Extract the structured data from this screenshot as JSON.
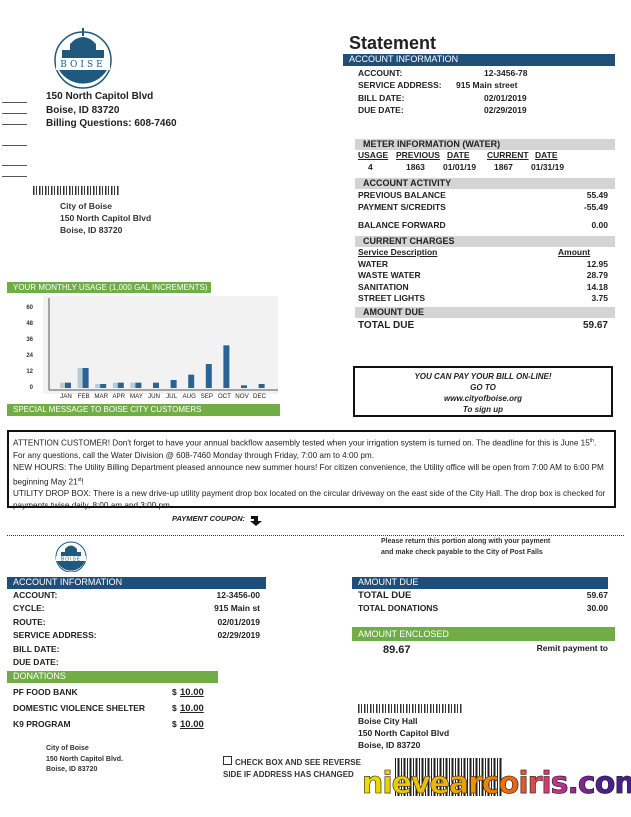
{
  "logo": {
    "text": "BOISE",
    "subtext": "CITY OF TREES"
  },
  "header": {
    "address1": "150 North Capitol Blvd",
    "address2": "Boise, ID 83720",
    "billing": "Billing Questions: 608-7460"
  },
  "mailing": {
    "name": "City of Boise",
    "address1": "150 North Capitol Blvd",
    "address2": "Boise, ID 83720"
  },
  "statement": {
    "title": "Statement",
    "account_header": "ACCOUNT INFORMATION",
    "rows": [
      {
        "label": "ACCOUNT:",
        "value": "12-3456-78"
      },
      {
        "label": "SERVICE ADDRESS:",
        "value": "915 Main street"
      },
      {
        "label": "BILL DATE:",
        "value": "02/01/2019"
      },
      {
        "label": "DUE DATE:",
        "value": "02/29/2019"
      }
    ],
    "meter": {
      "header": "METER INFORMATION (WATER)",
      "columns": [
        "USAGE",
        "PREVIOUS",
        "DATE",
        "CURRENT",
        "DATE"
      ],
      "values": [
        "4",
        "1863",
        "01/01/19",
        "1867",
        "01/31/19"
      ]
    },
    "activity": {
      "header": "ACCOUNT ACTIVITY",
      "rows": [
        {
          "label": "PREVIOUS BALANCE",
          "value": "55.49"
        },
        {
          "label": "PAYMENT S/CREDITS",
          "value": "-55.49"
        },
        {
          "label": "BALANCE FORWARD",
          "value": "0.00"
        }
      ]
    },
    "charges": {
      "header": "CURRENT CHARGES",
      "col_desc": "Service Description",
      "col_amount": "Amount",
      "rows": [
        {
          "label": "WATER",
          "value": "12.95"
        },
        {
          "label": "WASTE WATER",
          "value": "28.79"
        },
        {
          "label": "SANITATION",
          "value": "14.18"
        },
        {
          "label": "STREET LIGHTS",
          "value": "3.75"
        }
      ]
    },
    "amount_due": {
      "header": "AMOUNT DUE",
      "label": "TOTAL DUE",
      "value": "59.67"
    }
  },
  "online": {
    "line1": "YOU CAN PAY YOUR BILL ON-LINE!",
    "line2": "GO TO",
    "line3": "www.cityofboise.org",
    "line4": "To sign up"
  },
  "usage": {
    "header": "YOUR MONTHLY USAGE (1,000 GAL INCREMENTS)",
    "special": "SPECIAL MESSAGE TO BOISE CITY CUSTOMERS"
  },
  "chart_data": {
    "type": "bar",
    "title": "YOUR MONTHLY USAGE (1,000 GAL INCREMENTS)",
    "categories": [
      "JAN",
      "FEB",
      "MAR",
      "APR",
      "MAY",
      "JUN",
      "JUL",
      "AUG",
      "SEP",
      "OCT",
      "NOV",
      "DEC"
    ],
    "series": [
      {
        "values": [
          4,
          15,
          3,
          4,
          4,
          null,
          null,
          null,
          null,
          null,
          null,
          null
        ],
        "color": "#b8c9d8"
      },
      {
        "values": [
          4,
          15,
          3,
          4,
          4,
          4,
          6,
          10,
          18,
          32,
          2,
          3
        ],
        "color": "#2a6496"
      }
    ],
    "yticks": [
      0,
      12,
      24,
      36,
      48,
      60
    ],
    "ylim": [
      0,
      60
    ],
    "grid": false
  },
  "message": {
    "p1a": "ATTENTION CUSTOMER!  Don't forget to have your annual backflow aasembly tested when your irrigation system is turned on. The deadline for this is June 15",
    "p1sup": "th",
    "p1b": ". For any questions, call the Water Division @ 608-7460 Monday through Friday, 7:00 am to 4:00 pm.",
    "p2a": "NEW HOURS: The Utility Billing Department pleased announce new summer hours! For citizen convenience, the Utility office will be open from 7:00 AM to 6:00 PM beginning May 21",
    "p2sup": "st",
    "p2b": "!",
    "p3": "UTILITY DROP BOX: There is a new drive-up utility payment drop box located on the circular driveway on the east side of the City Hall. The drop box is checked for payments twise daily, 8:00 am and 3:00 pm."
  },
  "coupon": {
    "label": "PAYMENT COUPON:",
    "return1": "Please return this portion along with your payment",
    "return2": "and make check payable to the City of Post Falls",
    "account_header": "ACCOUNT INFORMATION",
    "rows": [
      {
        "label": "ACCOUNT:",
        "value": "12-3456-00"
      },
      {
        "label": "CYCLE:",
        "value": "915 Main st"
      },
      {
        "label": "ROUTE:",
        "value": "02/01/2019"
      },
      {
        "label": "SERVICE ADDRESS:",
        "value": "02/29/2019"
      },
      {
        "label": "BILL DATE:",
        "value": ""
      },
      {
        "label": "DUE DATE:",
        "value": ""
      }
    ],
    "donations_header": "DONATIONS",
    "donations": [
      {
        "label": "PF FOOD BANK",
        "currency": "$",
        "value": "10.00"
      },
      {
        "label": "DOMESTIC VIOLENCE SHELTER",
        "currency": "$",
        "value": "10.00"
      },
      {
        "label": "K9 PROGRAM",
        "currency": "$",
        "value": "10.00"
      }
    ],
    "sender": {
      "name": "City of Boise",
      "address1": "150 North Capitol Blvd.",
      "address2": "Boise, ID 83720"
    },
    "checkbox_line1": "CHECK BOX AND SEE REVERSE",
    "checkbox_line2": "SIDE IF ADDRESS HAS CHANGED",
    "amount_due_header": "AMOUNT DUE",
    "total_due_label": "TOTAL DUE",
    "total_due": "59.67",
    "donations_label": "TOTAL DONATIONS",
    "donations_total": "30.00",
    "enclosed_header": "AMOUNT ENCLOSED",
    "enclosed": "89.67",
    "remit": "Remit payment to",
    "remit_to": {
      "name": "Boise City Hall",
      "address1": "150 North Capitol Blvd",
      "address2": "Boise, ID 83720"
    }
  },
  "watermark": "nievearcoiris.com"
}
